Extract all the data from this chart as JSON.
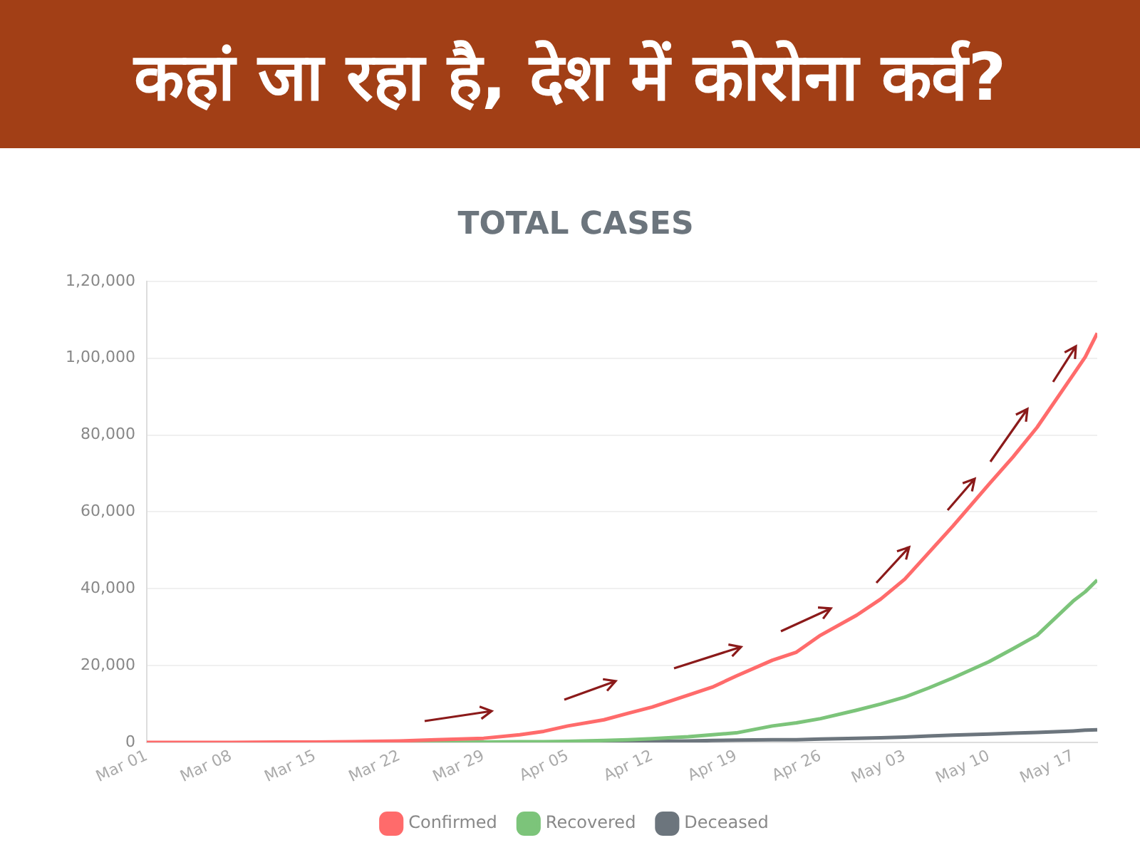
{
  "chart_data": {
    "type": "line",
    "title": "कहां जा रहा है, देश में कोरोना कर्व?",
    "subtitle": "TOTAL CASES",
    "x": [
      "--03-01",
      "--03-04",
      "--03-08",
      "--03-12",
      "--03-15",
      "--03-18",
      "--03-22",
      "--03-25",
      "--03-29",
      "--04-01",
      "--04-03",
      "--04-05",
      "--04-08",
      "--04-10",
      "--04-12",
      "--04-15",
      "--04-17",
      "--04-19",
      "--04-22",
      "--04-24",
      "--04-26",
      "--04-29",
      "--05-01",
      "--05-03",
      "--05-05",
      "--05-07",
      "--05-10",
      "--05-12",
      "--05-14",
      "--05-17",
      "--05-18",
      "--05-19"
    ],
    "series": [
      {
        "name": "Confirmed",
        "color": "#ff6b6b",
        "values": [
          0,
          0,
          0,
          100,
          100,
          200,
          400,
          700,
          1100,
          2000,
          2900,
          4300,
          5900,
          7600,
          9200,
          12300,
          14400,
          17300,
          21400,
          23500,
          27900,
          33100,
          37300,
          42500,
          49400,
          56300,
          67200,
          74300,
          82000,
          95700,
          100300,
          106500
        ]
      },
      {
        "name": "Recovered",
        "color": "#7cc47a",
        "values": [
          null,
          null,
          null,
          null,
          null,
          null,
          0,
          0,
          100,
          200,
          200,
          300,
          500,
          700,
          1000,
          1500,
          2000,
          2500,
          4300,
          5100,
          6200,
          8400,
          10000,
          11800,
          14200,
          16800,
          21000,
          24400,
          27900,
          36800,
          39200,
          42300
        ]
      },
      {
        "name": "Deceased",
        "color": "#6c757d",
        "values": [
          null,
          null,
          null,
          null,
          null,
          null,
          null,
          null,
          null,
          null,
          null,
          100,
          200,
          200,
          300,
          400,
          500,
          600,
          700,
          700,
          900,
          1100,
          1200,
          1400,
          1700,
          1900,
          2200,
          2400,
          2600,
          3000,
          3200,
          3300
        ]
      }
    ],
    "xlim": [
      "--03-01",
      "--05-19"
    ],
    "xticks": [
      {
        "value": "--03-01",
        "label": "Mar 01"
      },
      {
        "value": "--03-08",
        "label": "Mar 08"
      },
      {
        "value": "--03-15",
        "label": "Mar 15"
      },
      {
        "value": "--03-22",
        "label": "Mar 22"
      },
      {
        "value": "--03-29",
        "label": "Mar 29"
      },
      {
        "value": "--04-05",
        "label": "Apr 05"
      },
      {
        "value": "--04-12",
        "label": "Apr 12"
      },
      {
        "value": "--04-19",
        "label": "Apr 19"
      },
      {
        "value": "--04-26",
        "label": "Apr 26"
      },
      {
        "value": "--05-03",
        "label": "May 03"
      },
      {
        "value": "--05-10",
        "label": "May 10"
      },
      {
        "value": "--05-17",
        "label": "May 17"
      }
    ],
    "ylim": [
      0,
      120000
    ],
    "yticks": [
      {
        "value": 0,
        "label": "0"
      },
      {
        "value": 20000,
        "label": "20,000"
      },
      {
        "value": 40000,
        "label": "40,000"
      },
      {
        "value": 60000,
        "label": "60,000"
      },
      {
        "value": 80000,
        "label": "80,000"
      },
      {
        "value": 100000,
        "label": "1,00,000"
      },
      {
        "value": 120000,
        "label": "1,20,000"
      }
    ],
    "grid": "y",
    "legend": "bottom",
    "marker": "none",
    "line_style": "solid"
  }
}
